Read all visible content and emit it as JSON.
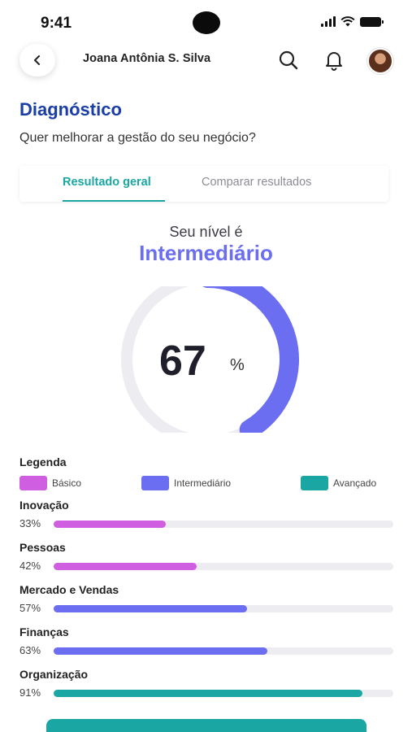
{
  "status_bar": {
    "time": "9:41"
  },
  "header": {
    "user_name": "Joana Antônia S. Silva"
  },
  "page": {
    "title": "Diagnóstico",
    "subtitle": "Quer melhorar a gestão do seu negócio?"
  },
  "tabs": [
    {
      "label": "Resultado geral",
      "active": true
    },
    {
      "label": "Comparar resultados",
      "active": false
    }
  ],
  "level": {
    "label": "Seu nível é",
    "value": "Intermediário",
    "percent": 67,
    "percent_symbol": "%"
  },
  "legend": {
    "title": "Legenda",
    "items": [
      {
        "label": "Básico",
        "color": "#cf5fe0"
      },
      {
        "label": "Intermediário",
        "color": "#6b6ef0"
      },
      {
        "label": "Avançado",
        "color": "#1aa7a4"
      }
    ]
  },
  "categories": [
    {
      "name": "Inovação",
      "percent_label": "33%",
      "value": 33,
      "color": "#cf5fe0"
    },
    {
      "name": "Pessoas",
      "percent_label": "42%",
      "value": 42,
      "color": "#cf5fe0"
    },
    {
      "name": "Mercado e Vendas",
      "percent_label": "57%",
      "value": 57,
      "color": "#6b6ef0"
    },
    {
      "name": "Finanças",
      "percent_label": "63%",
      "value": 63,
      "color": "#6b6ef0"
    },
    {
      "name": "Organização",
      "percent_label": "91%",
      "value": 91,
      "color": "#1aa7a4"
    }
  ],
  "colors": {
    "accent": "#1aa7a4",
    "title": "#1a3da8",
    "donut_track": "#ececf1",
    "donut_fill": "#6b6ef0"
  },
  "icons": {
    "back": "chevron-left-icon",
    "search": "search-icon",
    "notifications": "bell-icon"
  }
}
